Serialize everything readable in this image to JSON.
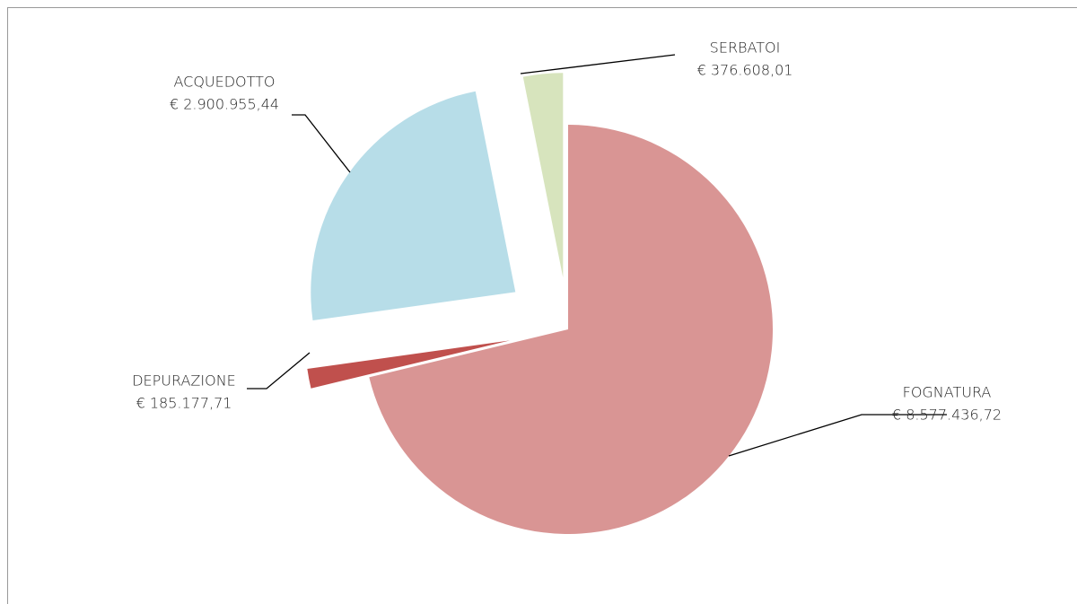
{
  "chart_data": {
    "type": "pie",
    "categories": [
      "FOGNATURA",
      "DEPURAZIONE",
      "ACQUEDOTTO",
      "SERBATOI"
    ],
    "values": [
      8577436.72,
      185177.71,
      2900955.44,
      376608.01
    ],
    "value_labels": [
      "€ 8.577.436,72",
      "€ 185.177,71",
      "€ 2.900.955,44",
      "€ 376.608,01"
    ],
    "colors": [
      "#d99594",
      "#c0504d",
      "#b7dde8",
      "#d7e4bd"
    ]
  }
}
